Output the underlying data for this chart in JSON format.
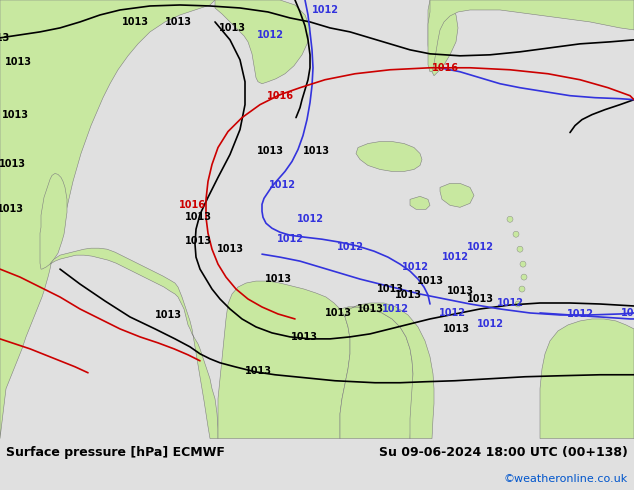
{
  "title_left": "Surface pressure [hPa] ECMWF",
  "title_right": "Su 09-06-2024 18:00 UTC (00+138)",
  "watermark": "©weatheronline.co.uk",
  "watermark_color": "#0055cc",
  "bg_color": "#e0e0e0",
  "land_color": "#c8e8a0",
  "land_edge": "#808080",
  "sea_color": "#e0e0e0",
  "footer_bg": "#d8d8d8",
  "footer_text_color": "#000000",
  "footer_fontsize": 9,
  "watermark_fontsize": 8,
  "label_fontsize": 7
}
